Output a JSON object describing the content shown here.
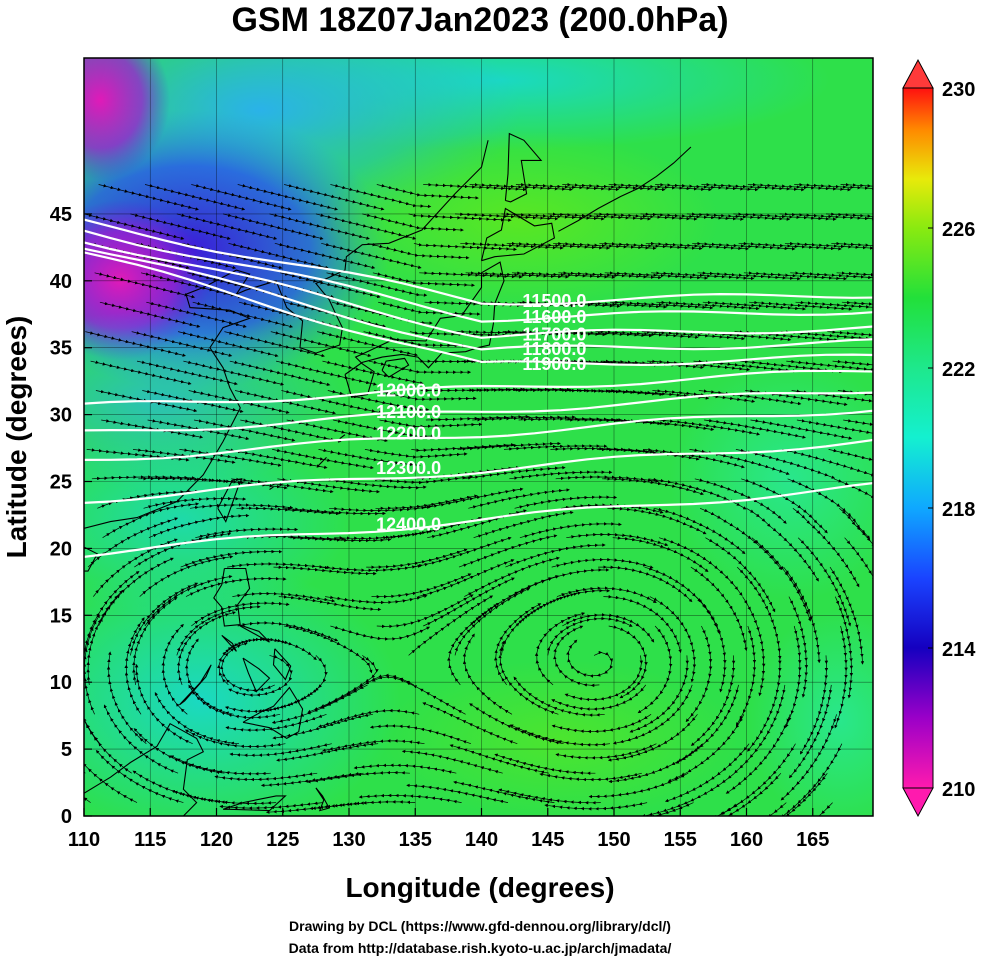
{
  "title": "GSM 18Z07Jan2023 (200.0hPa)",
  "x_axis": {
    "label": "Longitude (degrees)",
    "ticks": [
      "110",
      "115",
      "120",
      "125",
      "130",
      "135",
      "140",
      "145",
      "150",
      "155",
      "160",
      "165"
    ]
  },
  "y_axis": {
    "label": "Latitude  (degrees)",
    "ticks": [
      "0",
      "5",
      "10",
      "15",
      "20",
      "25",
      "30",
      "35",
      "40",
      "45"
    ]
  },
  "colorbar": {
    "min": 210,
    "max": 230,
    "labels": [
      "230",
      "226",
      "222",
      "218",
      "214",
      "210"
    ]
  },
  "contours": [
    {
      "label": "11500.0",
      "lat_at_150": 38.6
    },
    {
      "label": "11600.0",
      "lat_at_150": 37.4
    },
    {
      "label": "11700.0",
      "lat_at_150": 36.1
    },
    {
      "label": "11800.0",
      "lat_at_150": 35.0
    },
    {
      "label": "11900.0",
      "lat_at_150": 33.9
    },
    {
      "label": "12000.0",
      "lat_at_150": 32.4
    },
    {
      "label": "12100.0",
      "lat_at_150": 30.8
    },
    {
      "label": "12200.0",
      "lat_at_150": 29.2
    },
    {
      "label": "12300.0",
      "lat_at_150": 26.6
    },
    {
      "label": "12400.0",
      "lat_at_150": 23.0
    }
  ],
  "credits": {
    "line1": "Drawing by DCL (https://www.gfd-dennou.org/library/dcl/)",
    "line2": "Data from http://database.rish.kyoto-u.ac.jp/arch/jmadata/"
  }
}
